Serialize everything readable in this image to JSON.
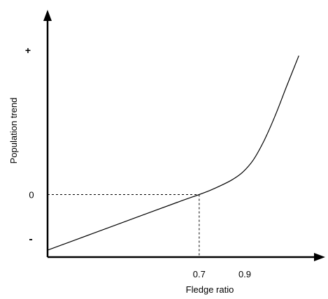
{
  "chart_data": {
    "type": "line",
    "title": "",
    "xlabel": "Fledge ratio",
    "ylabel": "Population trend",
    "x_ticks": [
      "0.7",
      "0.9"
    ],
    "y_ticks": [
      "+",
      "0",
      "-"
    ],
    "grid": false,
    "annotations": [
      {
        "text": "",
        "description": "dashed reference lines from curve point at x=0.7 to both axes (y=0)"
      }
    ],
    "series": [
      {
        "x": [
          0.0,
          0.2,
          0.4,
          0.6,
          0.7,
          0.75,
          0.8,
          0.85,
          0.9,
          0.95,
          1.0,
          1.05,
          1.1,
          1.16
        ],
        "y": [
          -0.8,
          -0.57,
          -0.34,
          -0.11,
          0.0,
          0.06,
          0.13,
          0.21,
          0.32,
          0.5,
          0.78,
          1.13,
          1.53,
          2.0
        ]
      }
    ],
    "xlim": [
      0.0,
      1.23
    ],
    "ylim": [
      -0.9,
      2.5
    ],
    "reference": {
      "x": 0.7,
      "y": 0.0
    },
    "axis_style": "arrows, no numeric scale",
    "colors": {
      "line": "#000000",
      "axis": "#000000",
      "background": "#ffffff"
    }
  }
}
